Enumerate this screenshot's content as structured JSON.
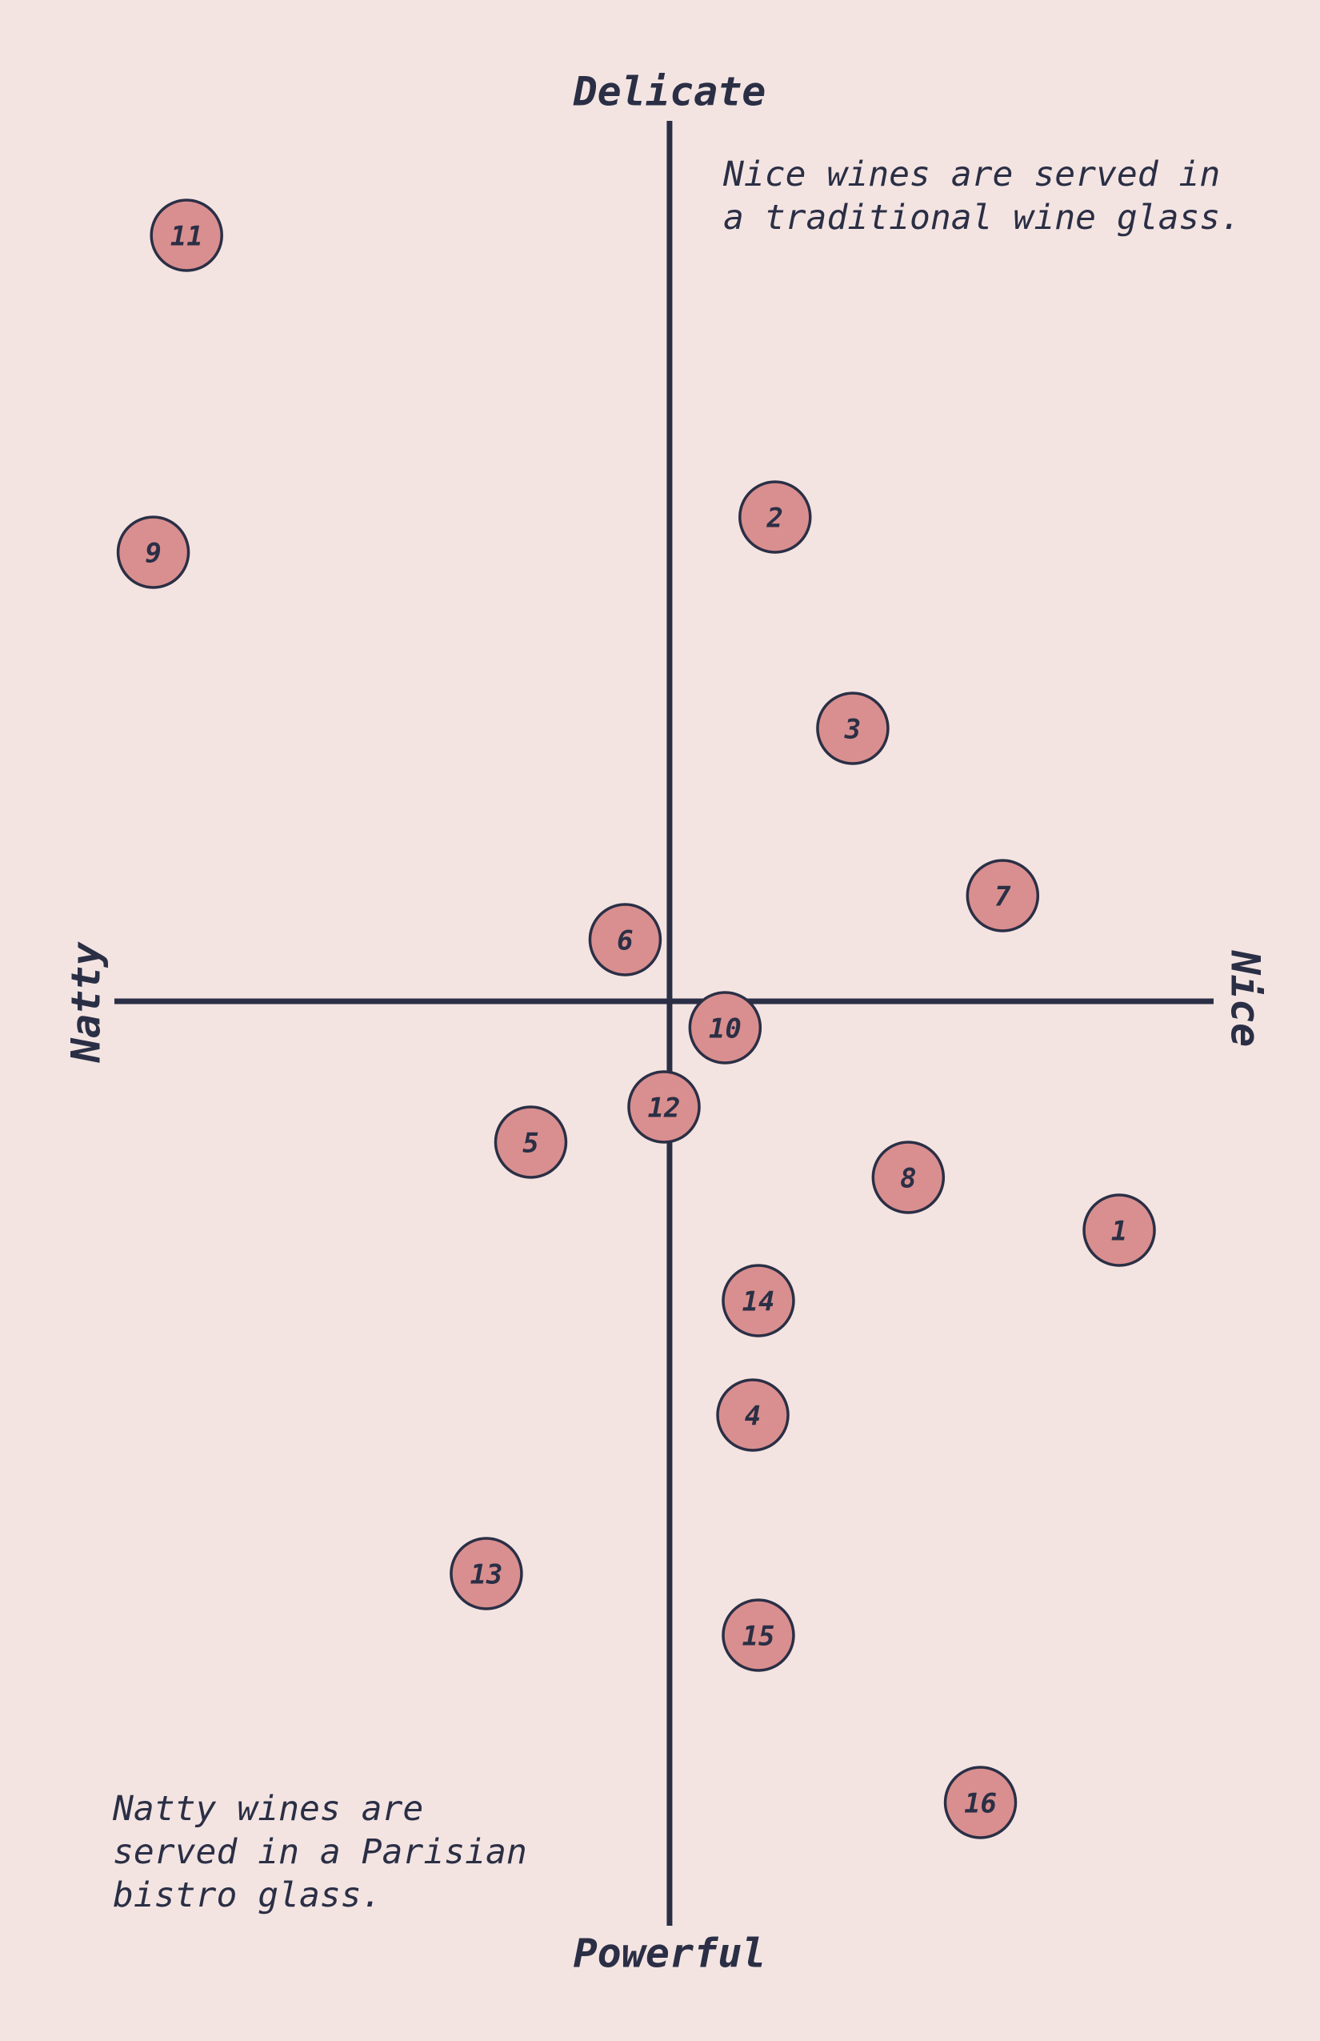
{
  "chart_data": {
    "type": "scatter",
    "top_label": "Delicate",
    "bottom_label": "Powerful",
    "left_label": "Natty",
    "right_label": "Nice",
    "annotations": [
      [
        "Nice wines are served in",
        "a traditional wine glass."
      ],
      [
        "Natty wines are",
        "served in a Parisian",
        "bistro glass."
      ]
    ],
    "labels": [
      "1",
      "2",
      "3",
      "4",
      "5",
      "6",
      "7",
      "8",
      "9",
      "10",
      "11",
      "12",
      "13",
      "14",
      "15",
      "16"
    ],
    "x": [
      8.1,
      1.9,
      3.3,
      1.5,
      -2.5,
      -0.8,
      6.0,
      4.3,
      -9.3,
      1.0,
      -8.7,
      -0.1,
      -3.3,
      1.6,
      1.6,
      5.6
    ],
    "y": [
      -2.6,
      5.5,
      3.1,
      -4.7,
      -1.6,
      0.7,
      1.2,
      -2.0,
      5.1,
      -0.3,
      8.7,
      -1.2,
      -6.5,
      -3.4,
      -7.2,
      -9.1
    ],
    "xlim": [
      -10,
      9.8
    ],
    "ylim": [
      -10.5,
      10
    ],
    "color": "#d98f8f"
  }
}
